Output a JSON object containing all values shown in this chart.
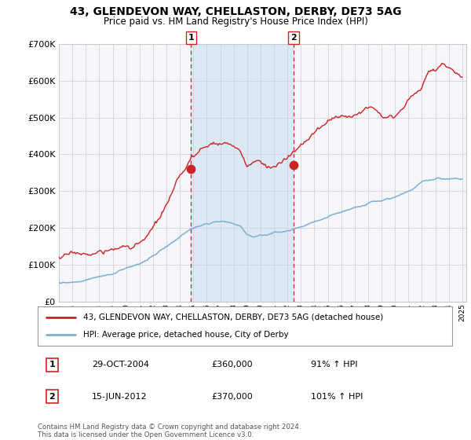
{
  "title1": "43, GLENDEVON WAY, CHELLASTON, DERBY, DE73 5AG",
  "title2": "Price paid vs. HM Land Registry's House Price Index (HPI)",
  "legend_line1": "43, GLENDEVON WAY, CHELLASTON, DERBY, DE73 5AG (detached house)",
  "legend_line2": "HPI: Average price, detached house, City of Derby",
  "annotation1_date": "29-OCT-2004",
  "annotation1_price": "£360,000",
  "annotation1_hpi": "91% ↑ HPI",
  "annotation2_date": "15-JUN-2012",
  "annotation2_price": "£370,000",
  "annotation2_hpi": "101% ↑ HPI",
  "footnote": "Contains HM Land Registry data © Crown copyright and database right 2024.\nThis data is licensed under the Open Government Licence v3.0.",
  "hpi_color": "#7ab0d4",
  "price_color": "#cc2222",
  "marker_color": "#cc2222",
  "vline_color": "#cc2222",
  "shade_color": "#dce9f5",
  "grid_color": "#ccccdd",
  "background_color": "#ffffff",
  "plot_bg_color": "#f5f5fa",
  "year_start": 1995,
  "year_end": 2025,
  "sale1_year": 2004.83,
  "sale1_value": 360000,
  "sale2_year": 2012.46,
  "sale2_value": 370000,
  "ylim_max": 700000
}
